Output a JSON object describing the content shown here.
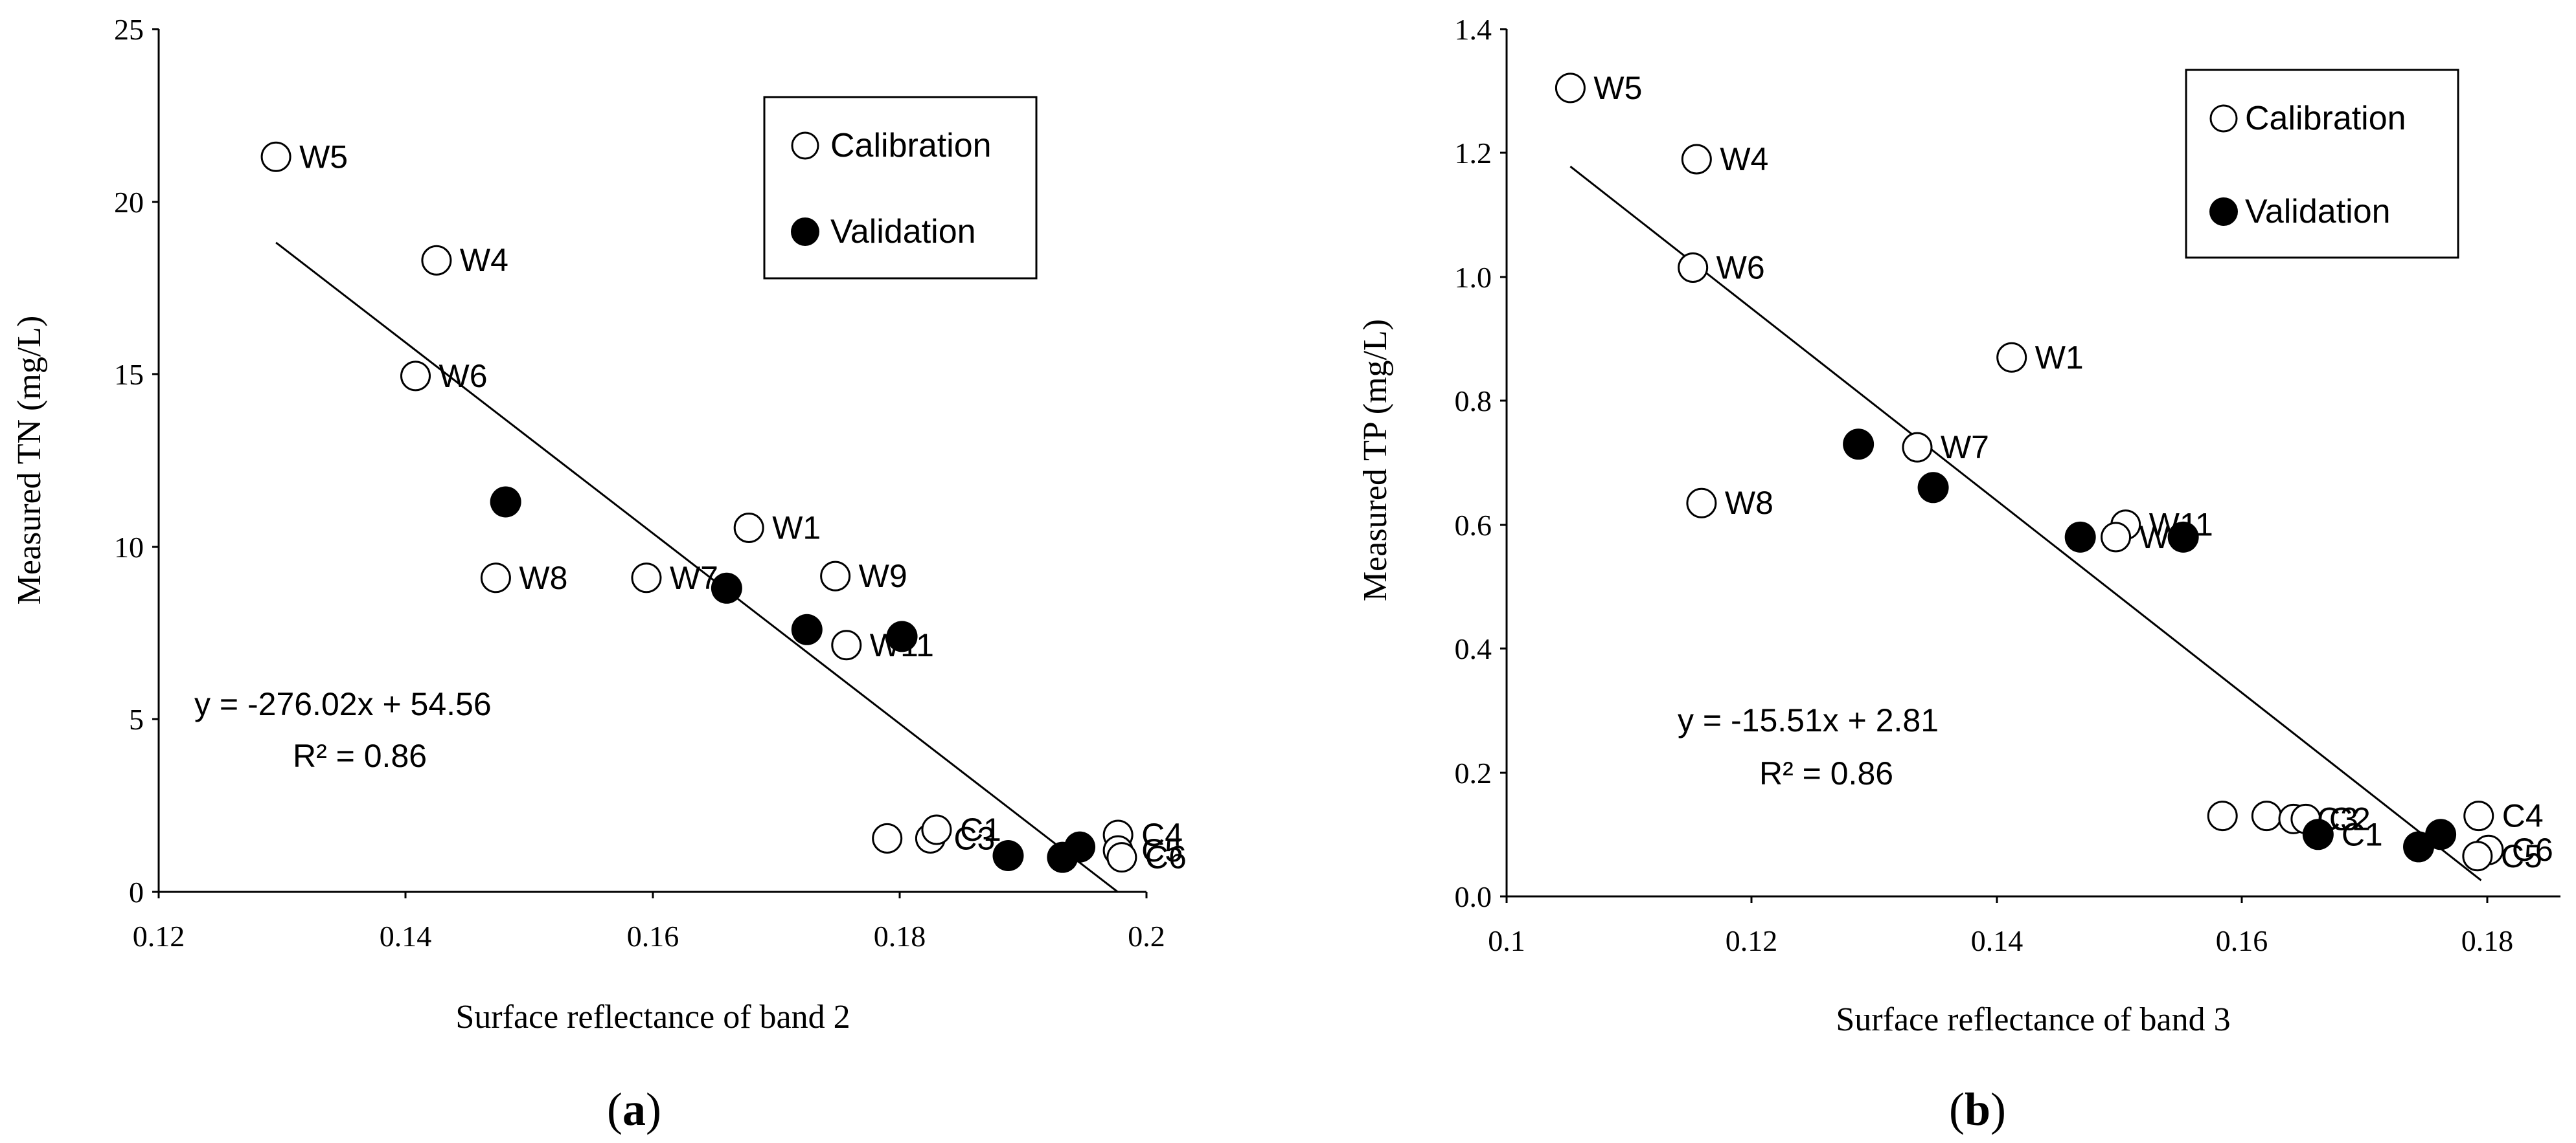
{
  "chart_data": [
    {
      "type": "scatter",
      "panel_label": "(a)",
      "panel_label_parts": [
        "(",
        "a",
        ")"
      ],
      "xlabel": "Surface reflectance of band 2",
      "ylabel": "Measured TN (mg/L)",
      "xlim": [
        0.12,
        0.2
      ],
      "ylim": [
        0,
        25
      ],
      "xticks": [
        0.12,
        0.14,
        0.16,
        0.18,
        0.2
      ],
      "xtick_labels": [
        "0.12",
        "0.14",
        "0.16",
        "0.18",
        "0.2"
      ],
      "yticks": [
        0,
        5,
        10,
        15,
        20,
        25
      ],
      "ytick_labels": [
        "0",
        "5",
        "10",
        "15",
        "20",
        "25"
      ],
      "legend": {
        "position": "top-right",
        "entries": [
          "Calibration",
          "Validation"
        ]
      },
      "equation": "y = -276.02x + 54.56",
      "r2": "R² = 0.86",
      "trendline": {
        "slope": -276.02,
        "intercept": 54.56,
        "x_range": [
          0.1295,
          0.1977
        ]
      },
      "series": [
        {
          "name": "Calibration",
          "points": [
            {
              "label": "W5",
              "x": 0.1295,
              "y": 21.3
            },
            {
              "label": "W4",
              "x": 0.1425,
              "y": 18.3
            },
            {
              "label": "W6",
              "x": 0.1408,
              "y": 14.95
            },
            {
              "label": "W1",
              "x": 0.1678,
              "y": 10.55
            },
            {
              "label": "W8",
              "x": 0.1473,
              "y": 9.1
            },
            {
              "label": "W7",
              "x": 0.1595,
              "y": 9.1
            },
            {
              "label": "W9",
              "x": 0.1748,
              "y": 9.15
            },
            {
              "label": "W11",
              "x": 0.1757,
              "y": 7.15
            },
            {
              "label": "",
              "x": 0.179,
              "y": 1.55
            },
            {
              "label": "C3",
              "x": 0.1825,
              "y": 1.55
            },
            {
              "label": "C1",
              "x": 0.183,
              "y": 1.8
            },
            {
              "label": "C4",
              "x": 0.1977,
              "y": 1.65
            },
            {
              "label": "C5",
              "x": 0.1977,
              "y": 1.2
            },
            {
              "label": "C6",
              "x": 0.198,
              "y": 1.0
            }
          ]
        },
        {
          "name": "Validation",
          "points": [
            {
              "label": "",
              "x": 0.1481,
              "y": 11.3
            },
            {
              "label": "",
              "x": 0.166,
              "y": 8.8
            },
            {
              "label": "",
              "x": 0.1725,
              "y": 7.6
            },
            {
              "label": "",
              "x": 0.1802,
              "y": 7.4
            },
            {
              "label": "",
              "x": 0.1888,
              "y": 1.05
            },
            {
              "label": "",
              "x": 0.1932,
              "y": 1.0
            },
            {
              "label": "",
              "x": 0.1946,
              "y": 1.3
            }
          ]
        }
      ]
    },
    {
      "type": "scatter",
      "panel_label": "(b)",
      "panel_label_parts": [
        "(",
        "b",
        ")"
      ],
      "xlabel": "Surface reflectance of band 3",
      "ylabel": "Measured TP (mg/L)",
      "xlim": [
        0.1,
        0.19
      ],
      "ylim": [
        0,
        1.4
      ],
      "xticks": [
        0.1,
        0.12,
        0.14,
        0.16,
        0.18
      ],
      "xtick_labels": [
        "0.1",
        "0.12",
        "0.14",
        "0.16",
        "0.18"
      ],
      "yticks": [
        0,
        0.2,
        0.4,
        0.6,
        0.8,
        1.0,
        1.2,
        1.4
      ],
      "ytick_labels": [
        "0.0",
        "0.2",
        "0.4",
        "0.6",
        "0.8",
        "1.0",
        "1.2",
        "1.4"
      ],
      "legend": {
        "position": "top-right",
        "entries": [
          "Calibration",
          "Validation"
        ]
      },
      "equation": "y = -15.51x + 2.81",
      "r2": "R² = 0.86",
      "trendline": {
        "slope": -15.51,
        "intercept": 2.81,
        "x_range": [
          0.1052,
          0.1795
        ]
      },
      "series": [
        {
          "name": "Calibration",
          "points": [
            {
              "label": "W5",
              "x": 0.1052,
              "y": 1.305
            },
            {
              "label": "W4",
              "x": 0.1155,
              "y": 1.19
            },
            {
              "label": "W6",
              "x": 0.1152,
              "y": 1.015
            },
            {
              "label": "W1",
              "x": 0.1412,
              "y": 0.87
            },
            {
              "label": "W7",
              "x": 0.1335,
              "y": 0.725
            },
            {
              "label": "W8",
              "x": 0.1159,
              "y": 0.635
            },
            {
              "label": "W11",
              "x": 0.1505,
              "y": 0.6
            },
            {
              "label": "W9",
              "x": 0.1497,
              "y": 0.58
            },
            {
              "label": "",
              "x": 0.1584,
              "y": 0.13
            },
            {
              "label": "",
              "x": 0.162,
              "y": 0.13
            },
            {
              "label": "C3",
              "x": 0.1642,
              "y": 0.125
            },
            {
              "label": "C2",
              "x": 0.1652,
              "y": 0.125
            },
            {
              "label": "C4",
              "x": 0.1793,
              "y": 0.13
            },
            {
              "label": "C6",
              "x": 0.1801,
              "y": 0.075
            },
            {
              "label": "C5",
              "x": 0.1792,
              "y": 0.065
            }
          ]
        },
        {
          "name": "Validation",
          "points": [
            {
              "label": "",
              "x": 0.1287,
              "y": 0.73
            },
            {
              "label": "",
              "x": 0.1348,
              "y": 0.66
            },
            {
              "label": "",
              "x": 0.1468,
              "y": 0.58
            },
            {
              "label": "",
              "x": 0.1552,
              "y": 0.58
            },
            {
              "label": "C1",
              "x": 0.1662,
              "y": 0.1
            },
            {
              "label": "",
              "x": 0.1744,
              "y": 0.08
            },
            {
              "label": "",
              "x": 0.1762,
              "y": 0.1
            }
          ]
        }
      ]
    }
  ]
}
